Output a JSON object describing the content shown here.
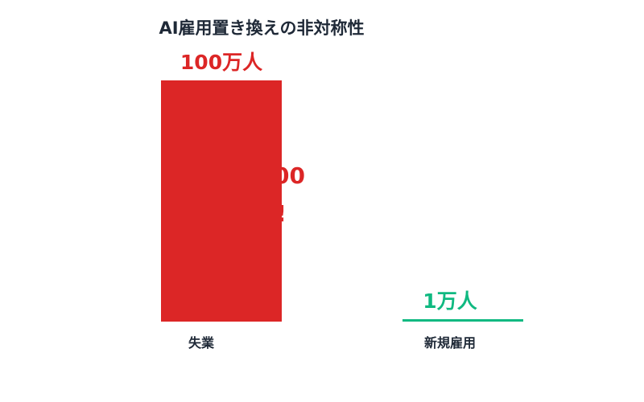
{
  "chart_data": {
    "type": "bar",
    "title": "AI雇用置き換えの非対称性",
    "categories": [
      "失業",
      "新規雇用"
    ],
    "values": [
      100,
      1
    ],
    "value_labels": [
      "100万人",
      "1万人"
    ],
    "unit": "万人",
    "colors": [
      "#dc2626",
      "#10b981"
    ],
    "ylim": [
      0,
      100
    ],
    "grid": false,
    "annotation": [
      "1:100",
      "!"
    ]
  }
}
